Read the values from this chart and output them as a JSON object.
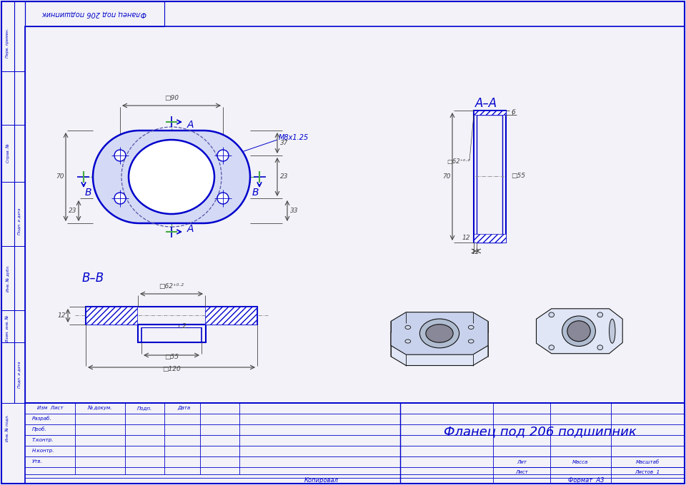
{
  "bg_color": "#f2f2f8",
  "bc": "#0000cc",
  "dc": "#444444",
  "title": "Фланец под 206 подшипник",
  "top_title": "Фланец под 206 подшипник",
  "lbl_AA": "A–A",
  "lbl_BB": "B–B",
  "lbl_A": "A",
  "lbl_B": "B",
  "stamp_rows": [
    "Разраб.",
    "Проб.",
    "Т.контр.",
    "Н.контр.",
    "Утв."
  ],
  "stamp_cols": [
    "Изм Лист",
    "№ докум.",
    "Подп.",
    "Дата"
  ],
  "stamp_right": [
    "Лит",
    "Масса",
    "Масштаб"
  ],
  "footer_left": "Копировал",
  "footer_right": "Формат  A3",
  "left_labels": [
    "Перв. примен.",
    "Справ. №",
    "Подп. и дата",
    "Инв. № дубл.",
    "Взам. инв. №",
    "Подп. и дата",
    "Инв. № подл."
  ]
}
